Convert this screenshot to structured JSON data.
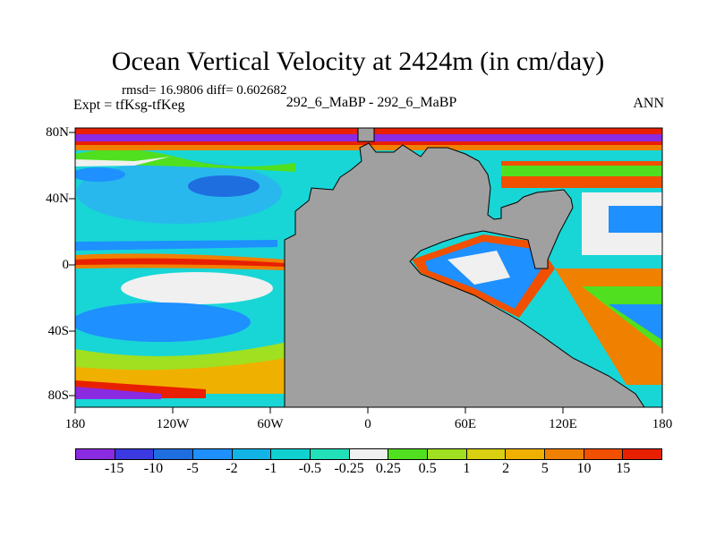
{
  "title": "Ocean Vertical Velocity at 2424m (in cm/day)",
  "stats": "rmsd= 16.9806 diff= 0.602682",
  "expt": "Expt = tfKsg-tfKeg",
  "center_label": "292_6_MaBP - 292_6_MaBP",
  "season": "ANN",
  "y_ticks": [
    "80N",
    "40N",
    "0",
    "40S",
    "80S"
  ],
  "x_ticks": [
    "180",
    "120W",
    "60W",
    "0",
    "60E",
    "120E",
    "180"
  ],
  "colorbar": {
    "labels": [
      "-15",
      "-10",
      "-5",
      "-2",
      "-1",
      "-0.5",
      "-0.25",
      "0.25",
      "0.5",
      "1",
      "2",
      "5",
      "10",
      "15"
    ],
    "colors": [
      "#8a2be2",
      "#3a3ae0",
      "#1e6ee0",
      "#1e90ff",
      "#12b4e6",
      "#10d0d0",
      "#22e0b8",
      "#f0f0f0",
      "#50e020",
      "#a0e020",
      "#d8d010",
      "#f0b000",
      "#f08000",
      "#f05000",
      "#e82000"
    ]
  },
  "colors": {
    "land": "#a0a0a0",
    "ocean_base": "#18d6d6"
  }
}
